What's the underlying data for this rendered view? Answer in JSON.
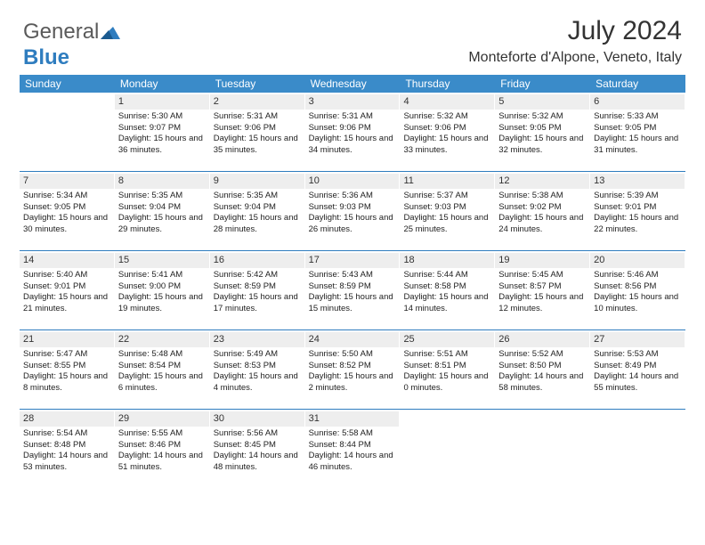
{
  "logo": {
    "part1": "General",
    "part2": "Blue"
  },
  "title": "July 2024",
  "location": "Monteforte d'Alpone, Veneto, Italy",
  "colors": {
    "header_bg": "#3a8bc9",
    "header_text": "#ffffff",
    "daybar_bg": "#eeeeee",
    "row_border": "#2f7dbf",
    "logo_blue": "#2f7dbf",
    "logo_gray": "#5a5a5a"
  },
  "weekdays": [
    "Sunday",
    "Monday",
    "Tuesday",
    "Wednesday",
    "Thursday",
    "Friday",
    "Saturday"
  ],
  "weeks": [
    [
      {
        "num": "",
        "sunrise": "",
        "sunset": "",
        "daylight": "",
        "empty": true
      },
      {
        "num": "1",
        "sunrise": "Sunrise: 5:30 AM",
        "sunset": "Sunset: 9:07 PM",
        "daylight": "Daylight: 15 hours and 36 minutes."
      },
      {
        "num": "2",
        "sunrise": "Sunrise: 5:31 AM",
        "sunset": "Sunset: 9:06 PM",
        "daylight": "Daylight: 15 hours and 35 minutes."
      },
      {
        "num": "3",
        "sunrise": "Sunrise: 5:31 AM",
        "sunset": "Sunset: 9:06 PM",
        "daylight": "Daylight: 15 hours and 34 minutes."
      },
      {
        "num": "4",
        "sunrise": "Sunrise: 5:32 AM",
        "sunset": "Sunset: 9:06 PM",
        "daylight": "Daylight: 15 hours and 33 minutes."
      },
      {
        "num": "5",
        "sunrise": "Sunrise: 5:32 AM",
        "sunset": "Sunset: 9:05 PM",
        "daylight": "Daylight: 15 hours and 32 minutes."
      },
      {
        "num": "6",
        "sunrise": "Sunrise: 5:33 AM",
        "sunset": "Sunset: 9:05 PM",
        "daylight": "Daylight: 15 hours and 31 minutes."
      }
    ],
    [
      {
        "num": "7",
        "sunrise": "Sunrise: 5:34 AM",
        "sunset": "Sunset: 9:05 PM",
        "daylight": "Daylight: 15 hours and 30 minutes."
      },
      {
        "num": "8",
        "sunrise": "Sunrise: 5:35 AM",
        "sunset": "Sunset: 9:04 PM",
        "daylight": "Daylight: 15 hours and 29 minutes."
      },
      {
        "num": "9",
        "sunrise": "Sunrise: 5:35 AM",
        "sunset": "Sunset: 9:04 PM",
        "daylight": "Daylight: 15 hours and 28 minutes."
      },
      {
        "num": "10",
        "sunrise": "Sunrise: 5:36 AM",
        "sunset": "Sunset: 9:03 PM",
        "daylight": "Daylight: 15 hours and 26 minutes."
      },
      {
        "num": "11",
        "sunrise": "Sunrise: 5:37 AM",
        "sunset": "Sunset: 9:03 PM",
        "daylight": "Daylight: 15 hours and 25 minutes."
      },
      {
        "num": "12",
        "sunrise": "Sunrise: 5:38 AM",
        "sunset": "Sunset: 9:02 PM",
        "daylight": "Daylight: 15 hours and 24 minutes."
      },
      {
        "num": "13",
        "sunrise": "Sunrise: 5:39 AM",
        "sunset": "Sunset: 9:01 PM",
        "daylight": "Daylight: 15 hours and 22 minutes."
      }
    ],
    [
      {
        "num": "14",
        "sunrise": "Sunrise: 5:40 AM",
        "sunset": "Sunset: 9:01 PM",
        "daylight": "Daylight: 15 hours and 21 minutes."
      },
      {
        "num": "15",
        "sunrise": "Sunrise: 5:41 AM",
        "sunset": "Sunset: 9:00 PM",
        "daylight": "Daylight: 15 hours and 19 minutes."
      },
      {
        "num": "16",
        "sunrise": "Sunrise: 5:42 AM",
        "sunset": "Sunset: 8:59 PM",
        "daylight": "Daylight: 15 hours and 17 minutes."
      },
      {
        "num": "17",
        "sunrise": "Sunrise: 5:43 AM",
        "sunset": "Sunset: 8:59 PM",
        "daylight": "Daylight: 15 hours and 15 minutes."
      },
      {
        "num": "18",
        "sunrise": "Sunrise: 5:44 AM",
        "sunset": "Sunset: 8:58 PM",
        "daylight": "Daylight: 15 hours and 14 minutes."
      },
      {
        "num": "19",
        "sunrise": "Sunrise: 5:45 AM",
        "sunset": "Sunset: 8:57 PM",
        "daylight": "Daylight: 15 hours and 12 minutes."
      },
      {
        "num": "20",
        "sunrise": "Sunrise: 5:46 AM",
        "sunset": "Sunset: 8:56 PM",
        "daylight": "Daylight: 15 hours and 10 minutes."
      }
    ],
    [
      {
        "num": "21",
        "sunrise": "Sunrise: 5:47 AM",
        "sunset": "Sunset: 8:55 PM",
        "daylight": "Daylight: 15 hours and 8 minutes."
      },
      {
        "num": "22",
        "sunrise": "Sunrise: 5:48 AM",
        "sunset": "Sunset: 8:54 PM",
        "daylight": "Daylight: 15 hours and 6 minutes."
      },
      {
        "num": "23",
        "sunrise": "Sunrise: 5:49 AM",
        "sunset": "Sunset: 8:53 PM",
        "daylight": "Daylight: 15 hours and 4 minutes."
      },
      {
        "num": "24",
        "sunrise": "Sunrise: 5:50 AM",
        "sunset": "Sunset: 8:52 PM",
        "daylight": "Daylight: 15 hours and 2 minutes."
      },
      {
        "num": "25",
        "sunrise": "Sunrise: 5:51 AM",
        "sunset": "Sunset: 8:51 PM",
        "daylight": "Daylight: 15 hours and 0 minutes."
      },
      {
        "num": "26",
        "sunrise": "Sunrise: 5:52 AM",
        "sunset": "Sunset: 8:50 PM",
        "daylight": "Daylight: 14 hours and 58 minutes."
      },
      {
        "num": "27",
        "sunrise": "Sunrise: 5:53 AM",
        "sunset": "Sunset: 8:49 PM",
        "daylight": "Daylight: 14 hours and 55 minutes."
      }
    ],
    [
      {
        "num": "28",
        "sunrise": "Sunrise: 5:54 AM",
        "sunset": "Sunset: 8:48 PM",
        "daylight": "Daylight: 14 hours and 53 minutes."
      },
      {
        "num": "29",
        "sunrise": "Sunrise: 5:55 AM",
        "sunset": "Sunset: 8:46 PM",
        "daylight": "Daylight: 14 hours and 51 minutes."
      },
      {
        "num": "30",
        "sunrise": "Sunrise: 5:56 AM",
        "sunset": "Sunset: 8:45 PM",
        "daylight": "Daylight: 14 hours and 48 minutes."
      },
      {
        "num": "31",
        "sunrise": "Sunrise: 5:58 AM",
        "sunset": "Sunset: 8:44 PM",
        "daylight": "Daylight: 14 hours and 46 minutes."
      },
      {
        "num": "",
        "sunrise": "",
        "sunset": "",
        "daylight": "",
        "empty": true
      },
      {
        "num": "",
        "sunrise": "",
        "sunset": "",
        "daylight": "",
        "empty": true
      },
      {
        "num": "",
        "sunrise": "",
        "sunset": "",
        "daylight": "",
        "empty": true
      }
    ]
  ]
}
